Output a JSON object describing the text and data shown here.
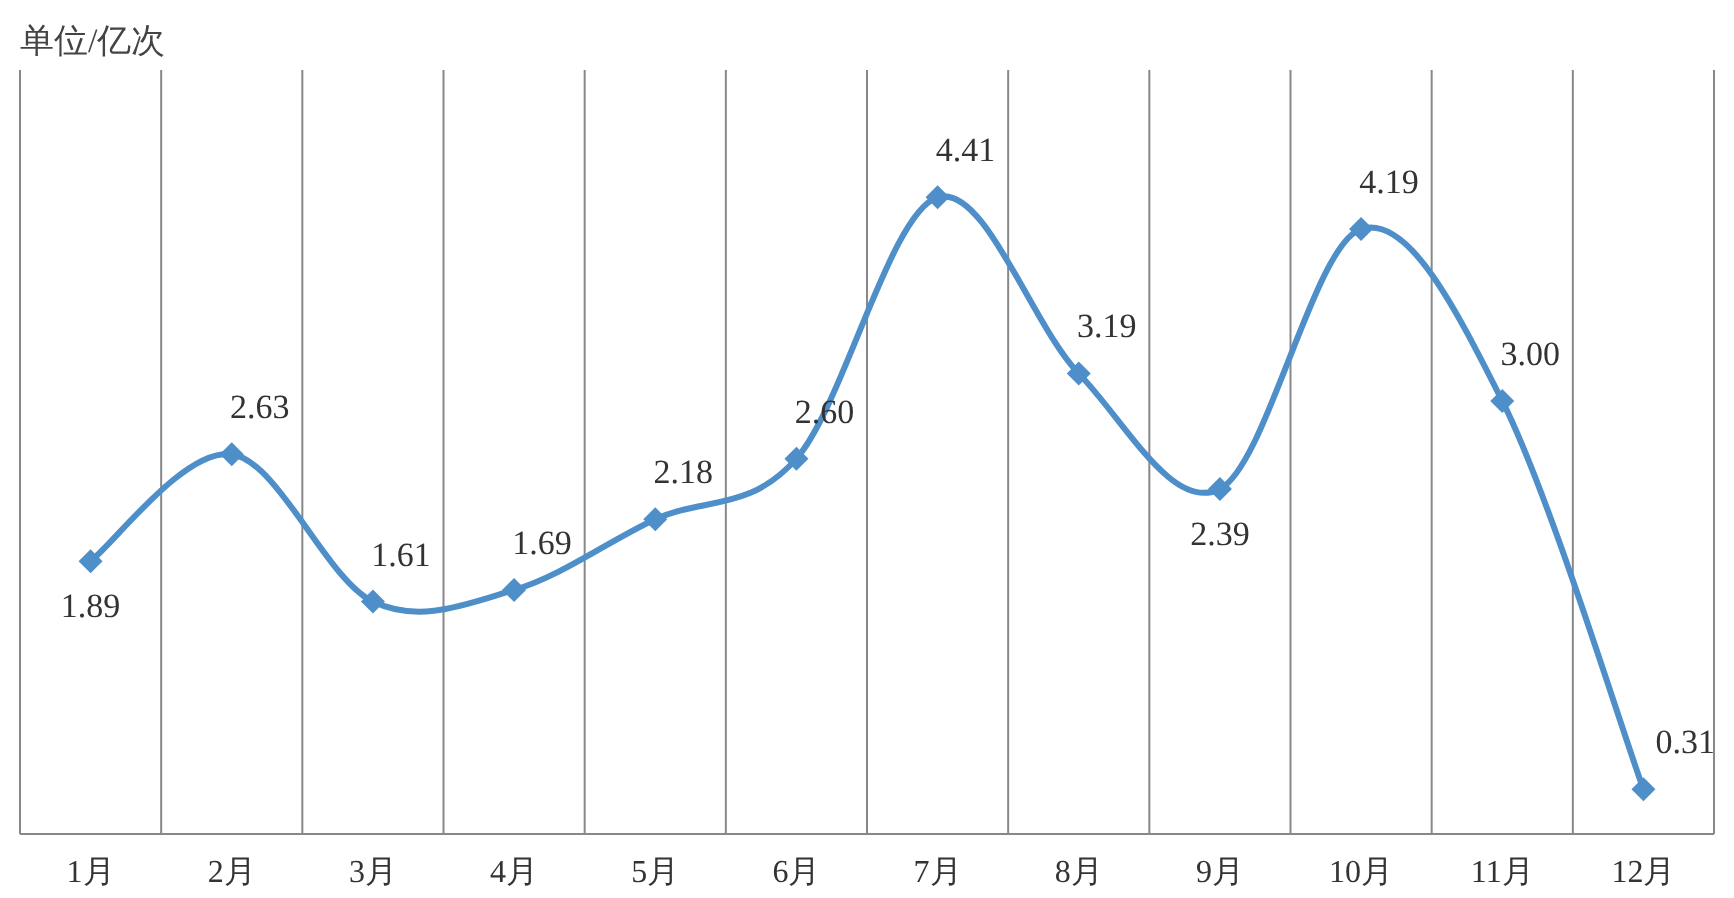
{
  "chart_data": {
    "type": "line",
    "ylabel": "单位/亿次",
    "categories": [
      "1月",
      "2月",
      "3月",
      "4月",
      "5月",
      "6月",
      "7月",
      "8月",
      "9月",
      "10月",
      "11月",
      "12月"
    ],
    "series": [
      {
        "color": "#4f8fc9",
        "values": [
          1.89,
          2.63,
          1.61,
          1.69,
          2.18,
          2.6,
          4.41,
          3.19,
          2.39,
          4.19,
          3.0,
          0.31
        ],
        "value_labels": [
          "1.89",
          "2.63",
          "1.61",
          "1.69",
          "2.18",
          "2.60",
          "4.41",
          "3.19",
          "2.39",
          "4.19",
          "3.00",
          "0.31"
        ]
      }
    ],
    "grid": "x",
    "marker": "diamond",
    "line_style": "solid"
  }
}
